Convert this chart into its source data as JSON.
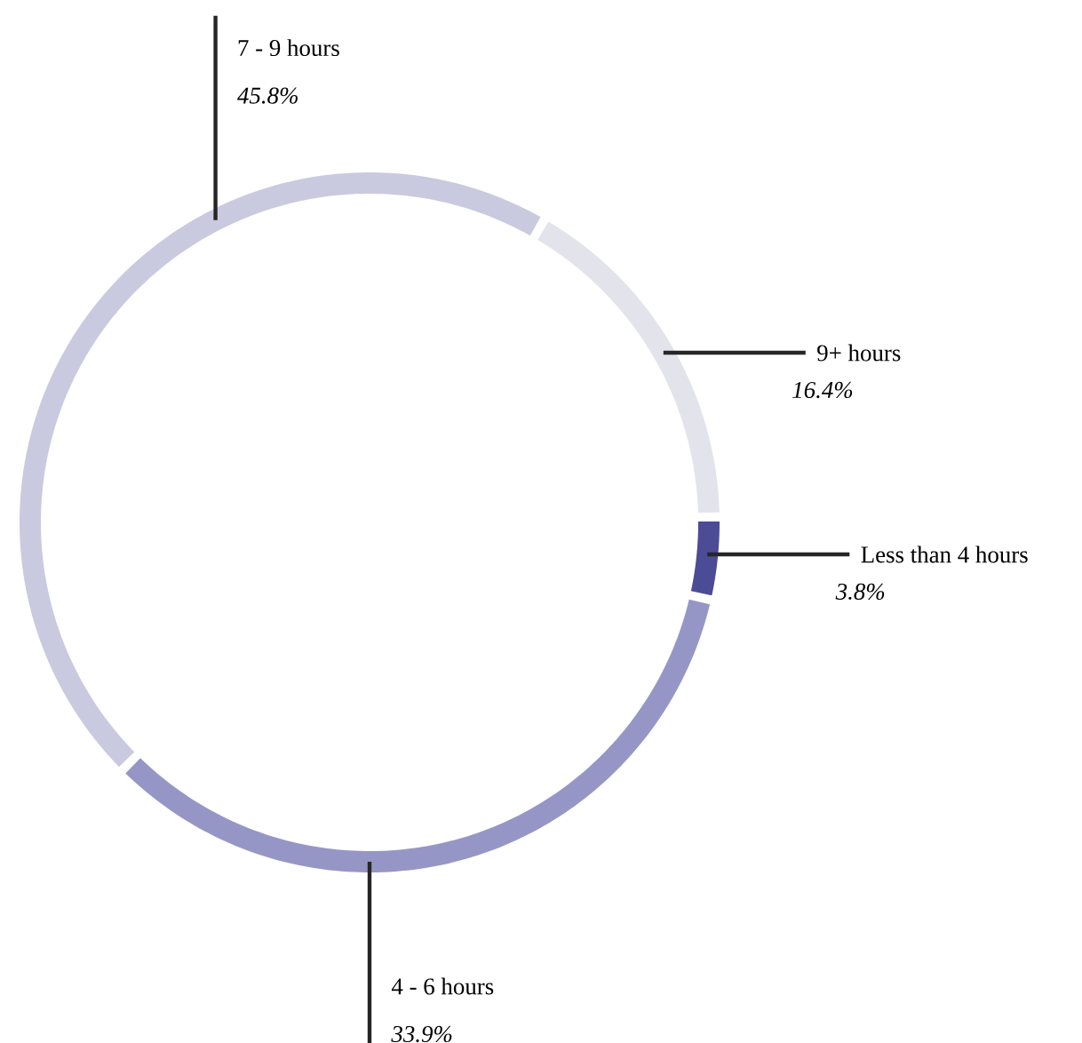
{
  "chart_data": {
    "type": "donut",
    "categories": [
      "9+ hours",
      "Less than 4 hours",
      "4 - 6 hours",
      "7 - 9 hours"
    ],
    "values": [
      16.4,
      3.8,
      33.9,
      45.8
    ],
    "colors": [
      "#e3e3ec",
      "#4b4b96",
      "#9696c6",
      "#c9cae0"
    ],
    "value_labels": [
      "16.4%",
      "3.8%",
      "33.9%",
      "45.8%"
    ]
  }
}
